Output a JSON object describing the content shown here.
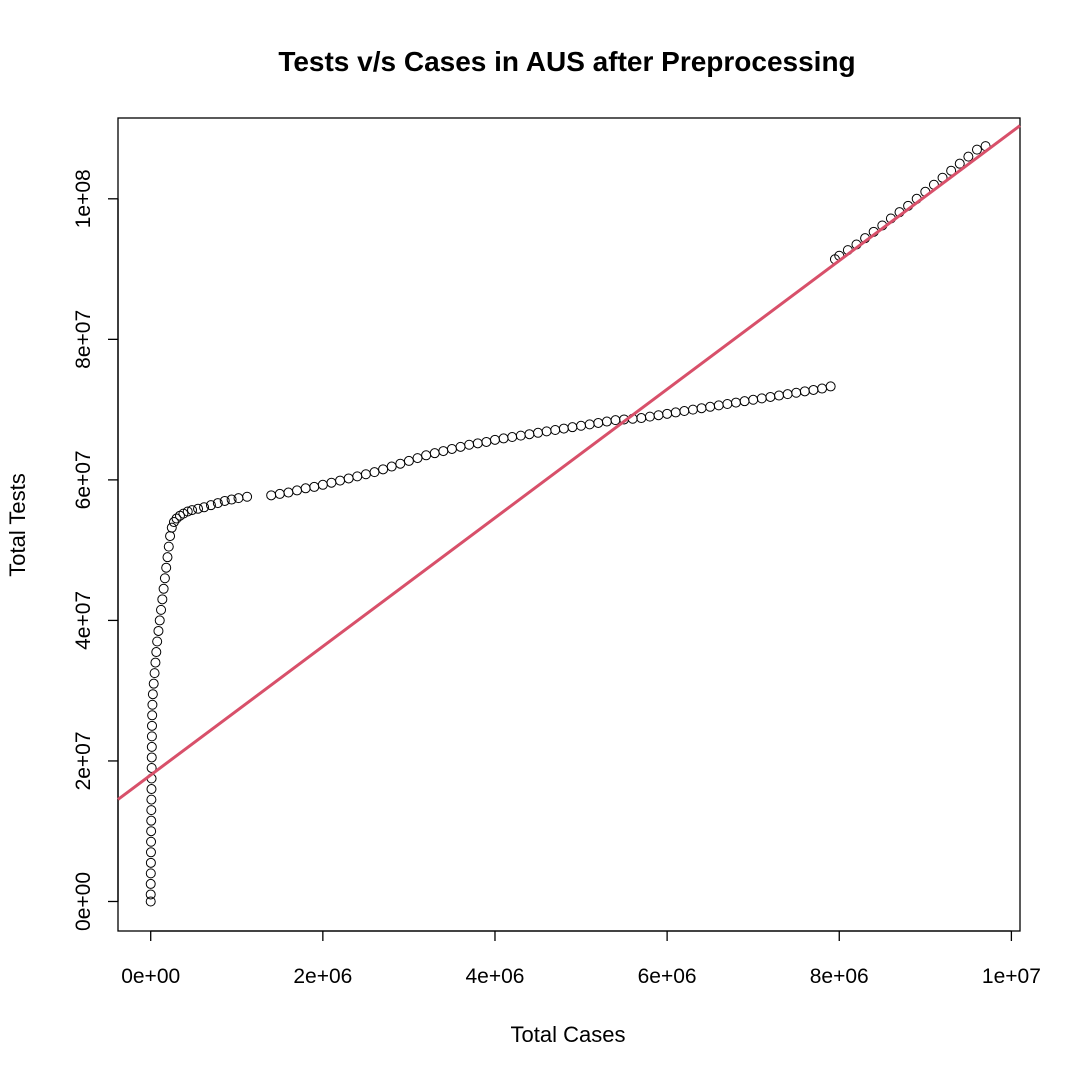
{
  "chart_data": {
    "type": "scatter",
    "title": "Tests v/s Cases in AUS after Preprocessing",
    "xlabel": "Total Cases",
    "ylabel": "Total Tests",
    "xlim": [
      -380000,
      10100000
    ],
    "ylim": [
      -4200000,
      111500000
    ],
    "x_ticks": [
      0,
      2000000,
      4000000,
      6000000,
      8000000,
      10000000
    ],
    "x_tick_labels": [
      "0e+00",
      "2e+06",
      "4e+06",
      "6e+06",
      "8e+06",
      "1e+07"
    ],
    "y_ticks": [
      0,
      20000000,
      40000000,
      60000000,
      80000000,
      100000000
    ],
    "y_tick_labels": [
      "0e+00",
      "2e+07",
      "4e+07",
      "6e+07",
      "8e+07",
      "1e+08"
    ],
    "grid": false,
    "marker": "open-circle",
    "marker_color": "#000000",
    "series": [
      {
        "points": [
          [
            0,
            0
          ],
          [
            0,
            1000000
          ],
          [
            0,
            2500000
          ],
          [
            1000,
            4000000
          ],
          [
            2000,
            5500000
          ],
          [
            3000,
            7000000
          ],
          [
            4000,
            8500000
          ],
          [
            5000,
            10000000
          ],
          [
            6000,
            11500000
          ],
          [
            7000,
            13000000
          ],
          [
            8000,
            14500000
          ],
          [
            9000,
            16000000
          ],
          [
            10000,
            17500000
          ],
          [
            11000,
            19000000
          ],
          [
            12000,
            20500000
          ],
          [
            13000,
            22000000
          ],
          [
            14000,
            23500000
          ],
          [
            15000,
            25000000
          ],
          [
            17000,
            26500000
          ],
          [
            20000,
            28000000
          ],
          [
            25000,
            29500000
          ],
          [
            35000,
            31000000
          ],
          [
            45000,
            32500000
          ],
          [
            55000,
            34000000
          ],
          [
            65000,
            35500000
          ],
          [
            75000,
            37000000
          ],
          [
            90000,
            38500000
          ],
          [
            105000,
            40000000
          ],
          [
            120000,
            41500000
          ],
          [
            135000,
            43000000
          ],
          [
            150000,
            44500000
          ],
          [
            165000,
            46000000
          ],
          [
            180000,
            47500000
          ],
          [
            195000,
            49000000
          ],
          [
            210000,
            50500000
          ],
          [
            225000,
            52000000
          ],
          [
            245000,
            53200000
          ],
          [
            270000,
            54000000
          ],
          [
            300000,
            54500000
          ],
          [
            340000,
            54900000
          ],
          [
            380000,
            55200000
          ],
          [
            430000,
            55500000
          ],
          [
            480000,
            55700000
          ],
          [
            550000,
            55900000
          ],
          [
            620000,
            56100000
          ],
          [
            700000,
            56400000
          ],
          [
            780000,
            56700000
          ],
          [
            860000,
            57000000
          ],
          [
            940000,
            57200000
          ],
          [
            1020000,
            57400000
          ],
          [
            1120000,
            57600000
          ],
          [
            1400000,
            57800000
          ],
          [
            1500000,
            58000000
          ],
          [
            1600000,
            58200000
          ],
          [
            1700000,
            58500000
          ],
          [
            1800000,
            58800000
          ],
          [
            1900000,
            59000000
          ],
          [
            2000000,
            59300000
          ],
          [
            2100000,
            59600000
          ],
          [
            2200000,
            59900000
          ],
          [
            2300000,
            60200000
          ],
          [
            2400000,
            60500000
          ],
          [
            2500000,
            60800000
          ],
          [
            2600000,
            61100000
          ],
          [
            2700000,
            61500000
          ],
          [
            2800000,
            61900000
          ],
          [
            2900000,
            62300000
          ],
          [
            3000000,
            62700000
          ],
          [
            3100000,
            63100000
          ],
          [
            3200000,
            63500000
          ],
          [
            3300000,
            63800000
          ],
          [
            3400000,
            64100000
          ],
          [
            3500000,
            64400000
          ],
          [
            3600000,
            64700000
          ],
          [
            3700000,
            65000000
          ],
          [
            3800000,
            65200000
          ],
          [
            3900000,
            65400000
          ],
          [
            4000000,
            65700000
          ],
          [
            4100000,
            65900000
          ],
          [
            4200000,
            66100000
          ],
          [
            4300000,
            66300000
          ],
          [
            4400000,
            66500000
          ],
          [
            4500000,
            66700000
          ],
          [
            4600000,
            66900000
          ],
          [
            4700000,
            67100000
          ],
          [
            4800000,
            67300000
          ],
          [
            4900000,
            67500000
          ],
          [
            5000000,
            67700000
          ],
          [
            5100000,
            67900000
          ],
          [
            5200000,
            68100000
          ],
          [
            5300000,
            68300000
          ],
          [
            5400000,
            68500000
          ],
          [
            5500000,
            68600000
          ],
          [
            5600000,
            68700000
          ],
          [
            5700000,
            68800000
          ],
          [
            5800000,
            69000000
          ],
          [
            5900000,
            69200000
          ],
          [
            6000000,
            69400000
          ],
          [
            6100000,
            69600000
          ],
          [
            6200000,
            69800000
          ],
          [
            6300000,
            70000000
          ],
          [
            6400000,
            70200000
          ],
          [
            6500000,
            70400000
          ],
          [
            6600000,
            70600000
          ],
          [
            6700000,
            70800000
          ],
          [
            6800000,
            71000000
          ],
          [
            6900000,
            71200000
          ],
          [
            7000000,
            71400000
          ],
          [
            7100000,
            71600000
          ],
          [
            7200000,
            71800000
          ],
          [
            7300000,
            72000000
          ],
          [
            7400000,
            72200000
          ],
          [
            7500000,
            72400000
          ],
          [
            7600000,
            72600000
          ],
          [
            7700000,
            72800000
          ],
          [
            7800000,
            73000000
          ],
          [
            7900000,
            73300000
          ],
          [
            7950000,
            91400000
          ],
          [
            8000000,
            91900000
          ],
          [
            8100000,
            92700000
          ],
          [
            8200000,
            93500000
          ],
          [
            8300000,
            94400000
          ],
          [
            8400000,
            95300000
          ],
          [
            8500000,
            96200000
          ],
          [
            8600000,
            97200000
          ],
          [
            8700000,
            98100000
          ],
          [
            8800000,
            99000000
          ],
          [
            8900000,
            100000000
          ],
          [
            9000000,
            101000000
          ],
          [
            9100000,
            102000000
          ],
          [
            9200000,
            103000000
          ],
          [
            9300000,
            104000000
          ],
          [
            9400000,
            105000000
          ],
          [
            9500000,
            106000000
          ],
          [
            9600000,
            107000000
          ],
          [
            9700000,
            107500000
          ]
        ]
      }
    ],
    "fit_line": {
      "intercept": 18000000,
      "slope": 9.15,
      "color": "#D8506A"
    }
  }
}
